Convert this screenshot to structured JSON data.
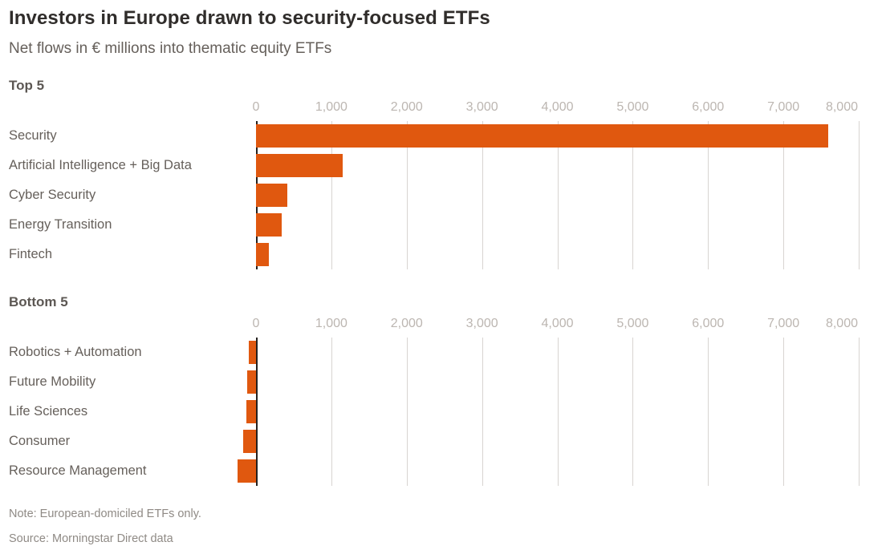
{
  "page": {
    "title": "Investors in Europe drawn to security-focused ETFs",
    "subtitle": "Net flows in € millions into thematic equity ETFs",
    "note": "Note: European-domiciled ETFs only.",
    "source": "Source: Morningstar Direct data"
  },
  "colors": {
    "bar": "#e0580f",
    "title": "#302d2b",
    "text": "#66605b",
    "section_header": "#5c5753",
    "tick": "#bcb6b1",
    "gridline": "#d8d4d1",
    "zero_axis": "#24211f",
    "note": "#8f8a85",
    "background": "#ffffff"
  },
  "chart_data": [
    {
      "type": "bar",
      "orientation": "horizontal",
      "title": "Top 5",
      "categories": [
        "Security",
        "Artificial Intelligence + Big Data",
        "Cyber Security",
        "Energy Transition",
        "Fintech"
      ],
      "values": [
        7600,
        1150,
        420,
        340,
        170
      ],
      "xlim": [
        0,
        8000
      ],
      "xticks": [
        0,
        1000,
        2000,
        3000,
        4000,
        5000,
        6000,
        7000,
        8000
      ],
      "xtick_labels": [
        "0",
        "1,000",
        "2,000",
        "3,000",
        "4,000",
        "5,000",
        "6,000",
        "7,000",
        "8,000"
      ],
      "xlabel": "",
      "ylabel": "",
      "unit": "€ millions",
      "grid": true,
      "legend": false
    },
    {
      "type": "bar",
      "orientation": "horizontal",
      "title": "Bottom 5",
      "categories": [
        "Robotics + Automation",
        "Future Mobility",
        "Life Sciences",
        "Consumer",
        "Resource Management"
      ],
      "values": [
        -100,
        -120,
        -130,
        -170,
        -250
      ],
      "xlim": [
        0,
        8000
      ],
      "xticks": [
        0,
        1000,
        2000,
        3000,
        4000,
        5000,
        6000,
        7000,
        8000
      ],
      "xtick_labels": [
        "0",
        "1,000",
        "2,000",
        "3,000",
        "4,000",
        "5,000",
        "6,000",
        "7,000",
        "8,000"
      ],
      "xlabel": "",
      "ylabel": "",
      "unit": "€ millions",
      "grid": true,
      "legend": false
    }
  ]
}
